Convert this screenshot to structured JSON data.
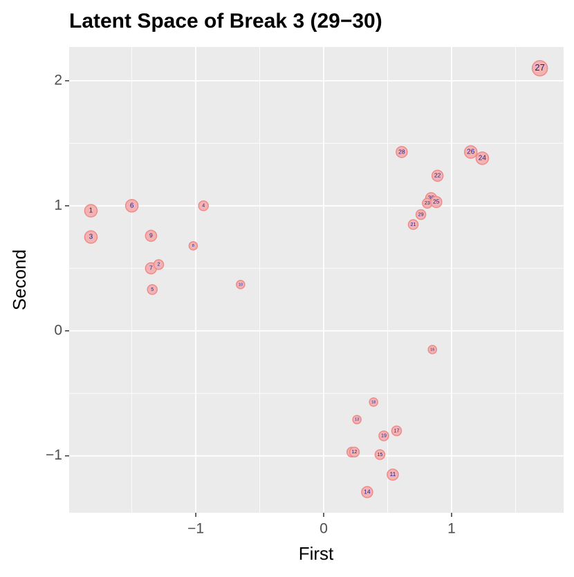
{
  "chart_data": {
    "type": "scatter",
    "title": "Latent Space of Break 3 (29−30)",
    "x_label": "First",
    "y_label": "Second",
    "labels": [
      "1",
      "3",
      "6",
      "9",
      "7",
      "2",
      "5",
      "4",
      "8",
      "10",
      "27",
      "28",
      "26",
      "24",
      "22",
      "30",
      "23",
      "25",
      "29",
      "21",
      "16",
      "18",
      "13",
      "17",
      "19",
      "20",
      "12",
      "15",
      "11",
      "14"
    ],
    "x": [
      -1.82,
      -1.82,
      -1.5,
      -1.35,
      -1.35,
      -1.29,
      -1.34,
      -0.94,
      -1.02,
      -0.65,
      1.69,
      0.61,
      1.15,
      1.24,
      0.89,
      0.84,
      0.81,
      0.88,
      0.76,
      0.7,
      0.85,
      0.39,
      0.26,
      0.57,
      0.47,
      0.22,
      0.24,
      0.44,
      0.54,
      0.34
    ],
    "values": [
      0.96,
      0.75,
      1.0,
      0.76,
      0.5,
      0.53,
      0.33,
      1.0,
      0.68,
      0.37,
      2.1,
      1.43,
      1.43,
      1.38,
      1.24,
      1.06,
      1.02,
      1.03,
      0.93,
      0.85,
      -0.15,
      -0.57,
      -0.71,
      -0.8,
      -0.84,
      -0.97,
      -0.97,
      -0.99,
      -1.15,
      -1.29
    ],
    "sizes": [
      9,
      9,
      9,
      8,
      8,
      7,
      7,
      7,
      6,
      6,
      11,
      8,
      9,
      9,
      8,
      8,
      7,
      8,
      7,
      7,
      6,
      6,
      6,
      7,
      7,
      7,
      7,
      7,
      8,
      8
    ],
    "color": "#f4b3b3",
    "edge_color": "#ee8a8a",
    "label_color": "#1c1c8e",
    "xlim": [
      -1.99,
      1.876
    ],
    "ylim": [
      -1.455,
      2.27
    ],
    "xticks": [
      {
        "value": -1,
        "label": "−1"
      },
      0,
      1
    ],
    "yticks": [
      {
        "value": -1,
        "label": "−1"
      },
      0,
      1,
      2
    ],
    "grid": true
  }
}
